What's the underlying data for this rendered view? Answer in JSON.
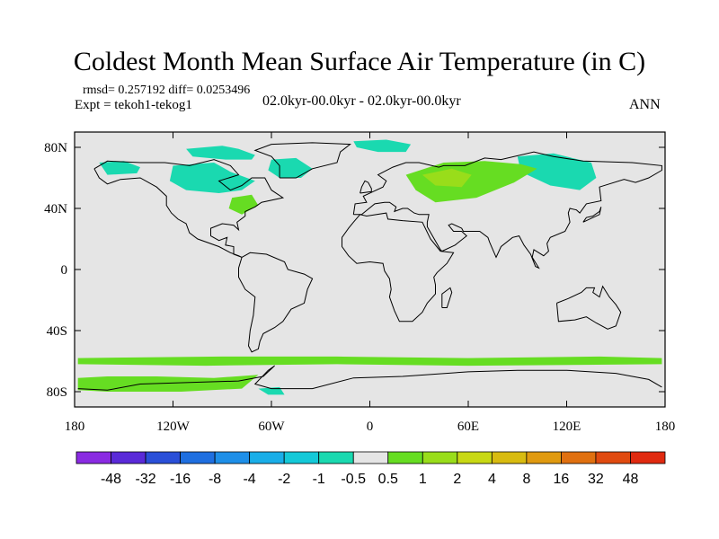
{
  "chart_data": {
    "type": "heatmap",
    "title": "Coldest Month Mean Surface Air Temperature (in C)",
    "stats_label": "rmsd= 0.257192 diff= 0.0253496",
    "rmsd": 0.257192,
    "diff": 0.0253496,
    "experiment_label": "Expt = tekoh1-tekog1",
    "period_label": "02.0kyr-00.0kyr - 02.0kyr-00.0kyr",
    "season_label": "ANN",
    "xlim": [
      -180,
      180
    ],
    "ylim": [
      -90,
      90
    ],
    "x_ticks": [
      {
        "value": -180,
        "label": "180"
      },
      {
        "value": -120,
        "label": "120W"
      },
      {
        "value": -60,
        "label": "60W"
      },
      {
        "value": 0,
        "label": "0"
      },
      {
        "value": 60,
        "label": "60E"
      },
      {
        "value": 120,
        "label": "120E"
      },
      {
        "value": 180,
        "label": "180"
      }
    ],
    "y_ticks": [
      {
        "value": 80,
        "label": "80N"
      },
      {
        "value": 40,
        "label": "40N"
      },
      {
        "value": 0,
        "label": "0"
      },
      {
        "value": -40,
        "label": "40S"
      },
      {
        "value": -80,
        "label": "80S"
      }
    ],
    "colorbar": {
      "levels": [
        -48,
        -32,
        -16,
        -8,
        -4,
        -2,
        -1,
        -0.5,
        0.5,
        1,
        2,
        4,
        8,
        16,
        32,
        48
      ],
      "level_labels": [
        "-48",
        "-32",
        "-16",
        "-8",
        "-4",
        "-2",
        "-1",
        "-0.5",
        "0.5",
        "1",
        "2",
        "4",
        "8",
        "16",
        "32",
        "48"
      ],
      "colors": [
        "#8a2be2",
        "#5a2ad8",
        "#2a4fd8",
        "#1f6fe0",
        "#1e8fe8",
        "#19aee8",
        "#14c9d8",
        "#1ad9b0",
        "#e5e5e5",
        "#66dd22",
        "#99dd1a",
        "#c8d814",
        "#d8bb10",
        "#e09a10",
        "#e07010",
        "#e04a10",
        "#e02a10"
      ]
    },
    "regions": [
      {
        "level": "-1",
        "color": "#1ad9b0",
        "lon": [
          -165,
          -150,
          -140,
          -142,
          -160
        ],
        "lat": [
          70,
          71,
          67,
          63,
          62
        ]
      },
      {
        "level": "-1",
        "color": "#1ad9b0",
        "lon": [
          -120,
          -95,
          -85,
          -70,
          -78,
          -92,
          -112,
          -122
        ],
        "lat": [
          68,
          70,
          64,
          58,
          52,
          50,
          52,
          58
        ]
      },
      {
        "level": "-1",
        "color": "#1ad9b0",
        "lon": [
          -112,
          -90,
          -80,
          -70,
          -72,
          -88,
          -108
        ],
        "lat": [
          79,
          81,
          79,
          75,
          72,
          72,
          74
        ]
      },
      {
        "level": "-1",
        "color": "#1ad9b0",
        "lon": [
          -60,
          -45,
          -35,
          -42,
          -55,
          -62
        ],
        "lat": [
          72,
          73,
          66,
          60,
          60,
          65
        ]
      },
      {
        "level": "-1",
        "color": "#1ad9b0",
        "lon": [
          -10,
          10,
          25,
          22,
          5,
          -8
        ],
        "lat": [
          84,
          85,
          82,
          77,
          77,
          80
        ]
      },
      {
        "level": "-1",
        "color": "#1ad9b0",
        "lon": [
          90,
          112,
          135,
          138,
          128,
          110,
          92
        ],
        "lat": [
          74,
          76,
          70,
          60,
          52,
          55,
          64
        ]
      },
      {
        "level": "1",
        "color": "#66dd22",
        "lon": [
          22,
          45,
          70,
          92,
          102,
          88,
          65,
          40,
          28
        ],
        "lat": [
          62,
          70,
          71,
          69,
          66,
          57,
          47,
          44,
          52
        ]
      },
      {
        "level": "2",
        "color": "#99dd1a",
        "lon": [
          32,
          50,
          62,
          56,
          40
        ],
        "lat": [
          62,
          66,
          62,
          54,
          55
        ]
      },
      {
        "level": "1",
        "color": "#66dd22",
        "lon": [
          -84,
          -72,
          -68,
          -78,
          -86
        ],
        "lat": [
          47,
          49,
          42,
          36,
          40
        ]
      },
      {
        "level": "1",
        "color": "#66dd22",
        "lon": [
          -178,
          -90,
          -20,
          60,
          140,
          178,
          178,
          60,
          -20,
          -100,
          -178
        ],
        "lat": [
          -58,
          -57,
          -57,
          -58,
          -57,
          -58,
          -62,
          -63,
          -62,
          -63,
          -62
        ]
      },
      {
        "level": "1",
        "color": "#66dd22",
        "lon": [
          -178,
          -160,
          -130,
          -95,
          -68,
          -78,
          -115,
          -160,
          -178
        ],
        "lat": [
          -71,
          -70,
          -70,
          -71,
          -69,
          -78,
          -80,
          -80,
          -79
        ]
      },
      {
        "level": "-1",
        "color": "#1ad9b0",
        "lon": [
          -68,
          -55,
          -52,
          -62
        ],
        "lat": [
          -78,
          -77,
          -82,
          -82
        ]
      }
    ]
  }
}
